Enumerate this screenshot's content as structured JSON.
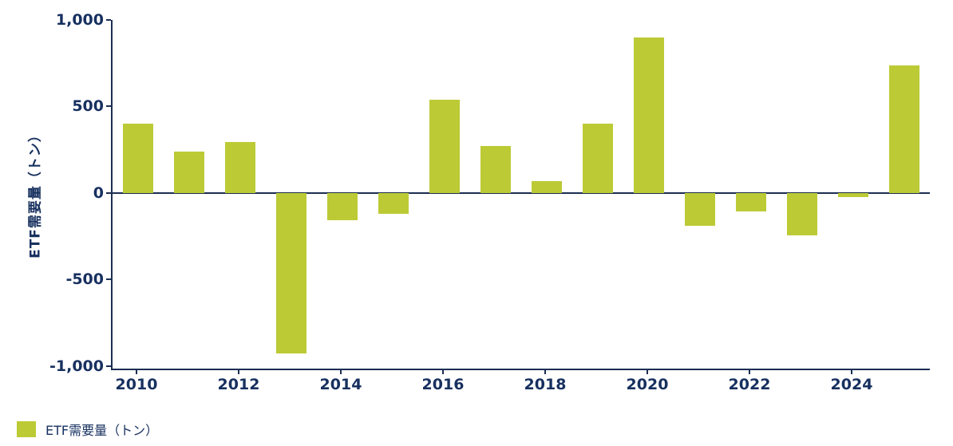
{
  "chart": {
    "y_axis_title": "ETF需要量（トン）",
    "legend": {
      "label": "ETF需要量（トン）",
      "swatch_color": "#bcca35"
    },
    "colors": {
      "bar": "#bcca35",
      "text": "#17305f",
      "axis": "#1c2e52"
    }
  },
  "chart_data": {
    "type": "bar",
    "title": "",
    "series_name": "ETF需要量（トン）",
    "categories": [
      "2010",
      "2011",
      "2012",
      "2013",
      "2014",
      "2015",
      "2016",
      "2017",
      "2018",
      "2019",
      "2020",
      "2021",
      "2022",
      "2023",
      "2024",
      "2025"
    ],
    "values": [
      400,
      240,
      295,
      -930,
      -160,
      -120,
      540,
      270,
      70,
      400,
      900,
      -190,
      -105,
      -245,
      -25,
      735
    ],
    "xlabel": "",
    "ylabel": "ETF需要量（トン）",
    "ylim": [
      -1000,
      1000
    ],
    "ytick_values": [
      1000,
      500,
      0,
      -500,
      -1000
    ],
    "ytick_labels": [
      "1,000",
      "500",
      "0",
      "-500",
      "-1,000"
    ],
    "xtick_labels": [
      "2010",
      "2012",
      "2014",
      "2016",
      "2018",
      "2020",
      "2022",
      "2024"
    ],
    "grid": false,
    "legend_position": "bottom-left",
    "bar_color": "#bcca35"
  }
}
